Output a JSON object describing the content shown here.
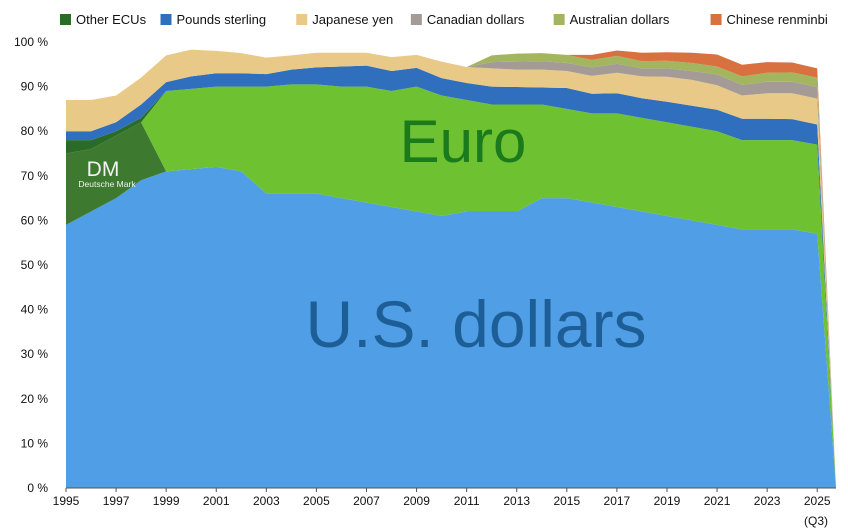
{
  "chart_data": {
    "type": "area",
    "stacked": true,
    "x": [
      1995,
      1996,
      1997,
      1998,
      1999,
      2000,
      2001,
      2002,
      2003,
      2004,
      2005,
      2006,
      2007,
      2008,
      2009,
      2010,
      2011,
      2012,
      2013,
      2014,
      2015,
      2016,
      2017,
      2018,
      2019,
      2020,
      2021,
      2022,
      2023,
      2024,
      2025
    ],
    "series": [
      {
        "name": "U.S. dollars",
        "color": "#4f9ee6",
        "values": [
          59,
          62,
          65,
          69,
          71,
          71.5,
          72,
          71,
          66,
          66,
          66,
          65,
          64,
          63,
          62,
          61,
          62,
          62,
          62,
          65,
          65,
          64,
          63,
          62,
          61,
          60,
          59,
          58,
          58,
          58,
          57
        ]
      },
      {
        "name": "DM",
        "color": "#3d7a30",
        "values": [
          16,
          14,
          14,
          13,
          0,
          0,
          0,
          0,
          0,
          0,
          0,
          0,
          0,
          0,
          0,
          0,
          0,
          0,
          0,
          0,
          0,
          0,
          0,
          0,
          0,
          0,
          0,
          0,
          0,
          0,
          0
        ]
      },
      {
        "name": "Euro",
        "color": "#6ec232",
        "values": [
          0,
          0,
          0,
          0,
          18,
          18,
          18,
          19,
          24,
          24.5,
          24.5,
          25,
          26,
          26,
          28,
          27,
          25,
          24,
          24,
          21,
          20,
          20,
          21,
          21,
          21,
          21,
          21,
          20,
          20,
          20,
          20
        ]
      },
      {
        "name": "Other ECUs",
        "color": "#2a6b27",
        "values": [
          3,
          2,
          1,
          1,
          0,
          0,
          0,
          0,
          0,
          0,
          0,
          0,
          0,
          0,
          0,
          0,
          0,
          0,
          0,
          0,
          0,
          0,
          0,
          0,
          0,
          0,
          0,
          0,
          0,
          0,
          0
        ]
      },
      {
        "name": "Pounds sterling",
        "color": "#2f6fbe",
        "values": [
          2,
          2,
          2,
          3,
          2,
          2.8,
          3,
          3,
          2.8,
          3.3,
          3.8,
          4.5,
          4.7,
          4.5,
          4.2,
          3.9,
          3.8,
          4,
          3.9,
          3.8,
          4.7,
          4.4,
          4.5,
          4.4,
          4.6,
          4.7,
          4.8,
          4.8,
          4.8,
          4.7,
          4.5
        ]
      },
      {
        "name": "Japanese yen",
        "color": "#e9c987",
        "values": [
          7,
          7,
          6,
          6,
          6,
          6,
          5,
          4.5,
          3.7,
          3.2,
          3.3,
          3.1,
          2.9,
          3.1,
          2.9,
          3.7,
          3.6,
          4.1,
          3.9,
          4,
          3.8,
          4,
          4.6,
          4.9,
          5.6,
          5.8,
          5.5,
          5.2,
          5.7,
          5.8,
          5.8
        ]
      },
      {
        "name": "Canadian dollars",
        "color": "#a49b96",
        "values": [
          0,
          0,
          0,
          0,
          0,
          0,
          0,
          0,
          0,
          0,
          0,
          0,
          0,
          0,
          0,
          0,
          0,
          1.4,
          1.8,
          1.9,
          1.8,
          1.9,
          2,
          1.8,
          1.9,
          2,
          2.4,
          2.4,
          2.6,
          2.6,
          2.6
        ]
      },
      {
        "name": "Australian dollars",
        "color": "#a4b560",
        "values": [
          0,
          0,
          0,
          0,
          0,
          0,
          0,
          0,
          0,
          0,
          0,
          0,
          0,
          0,
          0,
          0,
          0,
          1.5,
          1.8,
          1.8,
          1.8,
          1.7,
          1.8,
          1.6,
          1.7,
          1.8,
          1.8,
          1.9,
          2,
          2.1,
          2.1
        ]
      },
      {
        "name": "Chinese renminbi",
        "color": "#d87040",
        "values": [
          0,
          0,
          0,
          0,
          0,
          0,
          0,
          0,
          0,
          0,
          0,
          0,
          0,
          0,
          0,
          0,
          0,
          0,
          0,
          0,
          0,
          1.1,
          1.2,
          1.9,
          1.9,
          2.3,
          2.7,
          2.6,
          2.4,
          2.2,
          2.1
        ]
      }
    ],
    "legend": [
      "Other ECUs",
      "Pounds sterling",
      "Japanese yen",
      "Canadian dollars",
      "Australian dollars",
      "Chinese renminbi"
    ],
    "legend_placement": "top",
    "x_ticks": [
      "1995",
      "1997",
      "1999",
      "2001",
      "2003",
      "2005",
      "2007",
      "2009",
      "2011",
      "2013",
      "2015",
      "2017",
      "2019",
      "2021",
      "2023",
      "2025"
    ],
    "x_sublabel": "(Q3)",
    "y_ticks": [
      "0 %",
      "10 %",
      "20 %",
      "30 %",
      "40 %",
      "50 %",
      "60 %",
      "70 %",
      "80 %",
      "90 %",
      "100 %"
    ],
    "ylim": [
      0,
      100
    ],
    "xlim": [
      1995,
      2025.75
    ],
    "annotations": {
      "dm": "DM",
      "dm_sub": "Deutsche Mark",
      "euro": "Euro",
      "usd": "U.S. dollars"
    }
  }
}
